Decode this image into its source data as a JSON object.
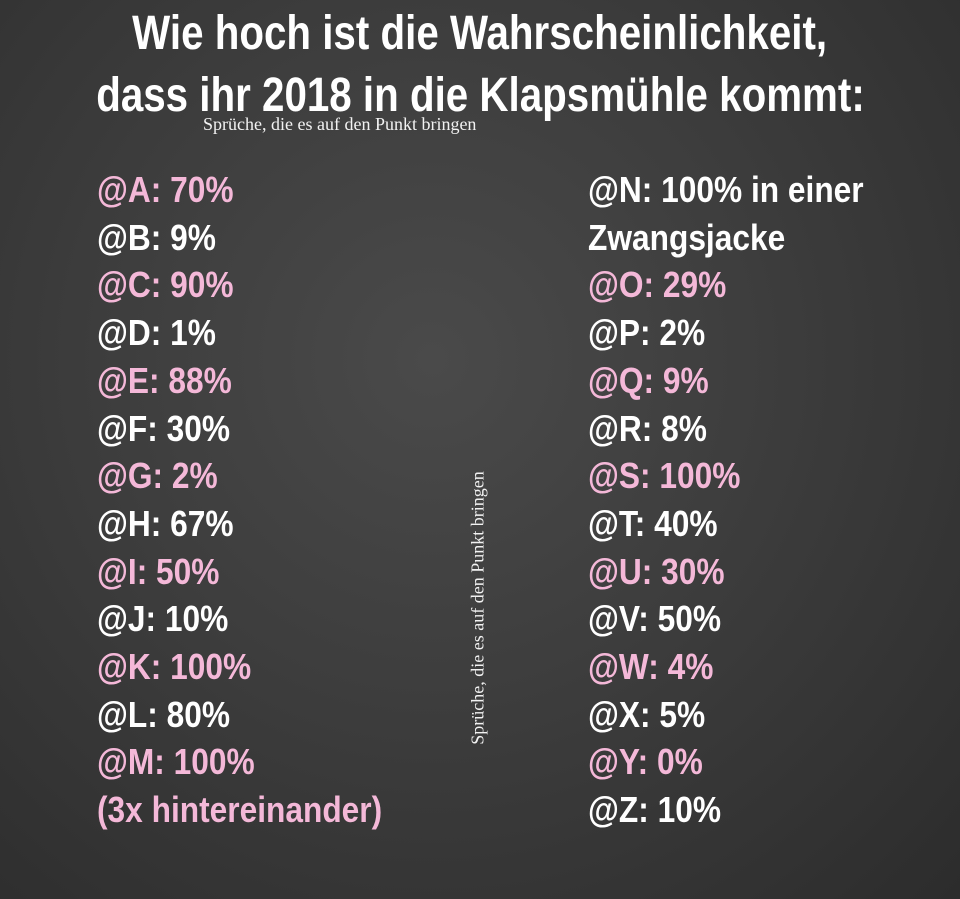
{
  "title": [
    "Wie hoch ist die Wahrscheinlichkeit,",
    "dass ihr 2018 in die Klapsmühle kommt:"
  ],
  "watermark": "Sprüche, die es auf den Punkt bringen",
  "side_watermark": "Sprüche, die es auf den Punkt bringen",
  "columns": [
    {
      "entries": [
        {
          "lines": [
            "@A: 70%"
          ]
        },
        {
          "lines": [
            "@B: 9%"
          ]
        },
        {
          "lines": [
            "@C: 90%"
          ]
        },
        {
          "lines": [
            "@D: 1%"
          ]
        },
        {
          "lines": [
            "@E: 88%"
          ]
        },
        {
          "lines": [
            "@F: 30%"
          ]
        },
        {
          "lines": [
            "@G: 2%"
          ]
        },
        {
          "lines": [
            "@H: 67%"
          ]
        },
        {
          "lines": [
            "@I: 50%"
          ]
        },
        {
          "lines": [
            "@J: 10%"
          ]
        },
        {
          "lines": [
            "@K: 100%"
          ]
        },
        {
          "lines": [
            "@L: 80%"
          ]
        },
        {
          "lines": [
            "@M: 100%",
            "(3x hintereinander)"
          ]
        }
      ]
    },
    {
      "entries": [
        {
          "lines": [
            "@N: 100% in einer",
            "Zwangsjacke"
          ]
        },
        {
          "lines": [
            "@O: 29%"
          ]
        },
        {
          "lines": [
            "@P: 2%"
          ]
        },
        {
          "lines": [
            "@Q: 9%"
          ]
        },
        {
          "lines": [
            "@R: 8%"
          ]
        },
        {
          "lines": [
            "@S: 100%"
          ]
        },
        {
          "lines": [
            "@T: 40%"
          ]
        },
        {
          "lines": [
            "@U: 30%"
          ]
        },
        {
          "lines": [
            "@V: 50%"
          ]
        },
        {
          "lines": [
            "@W: 4%"
          ]
        },
        {
          "lines": [
            "@X: 5%"
          ]
        },
        {
          "lines": [
            "@Y: 0%"
          ]
        },
        {
          "lines": [
            "@Z: 10%"
          ]
        }
      ]
    }
  ]
}
